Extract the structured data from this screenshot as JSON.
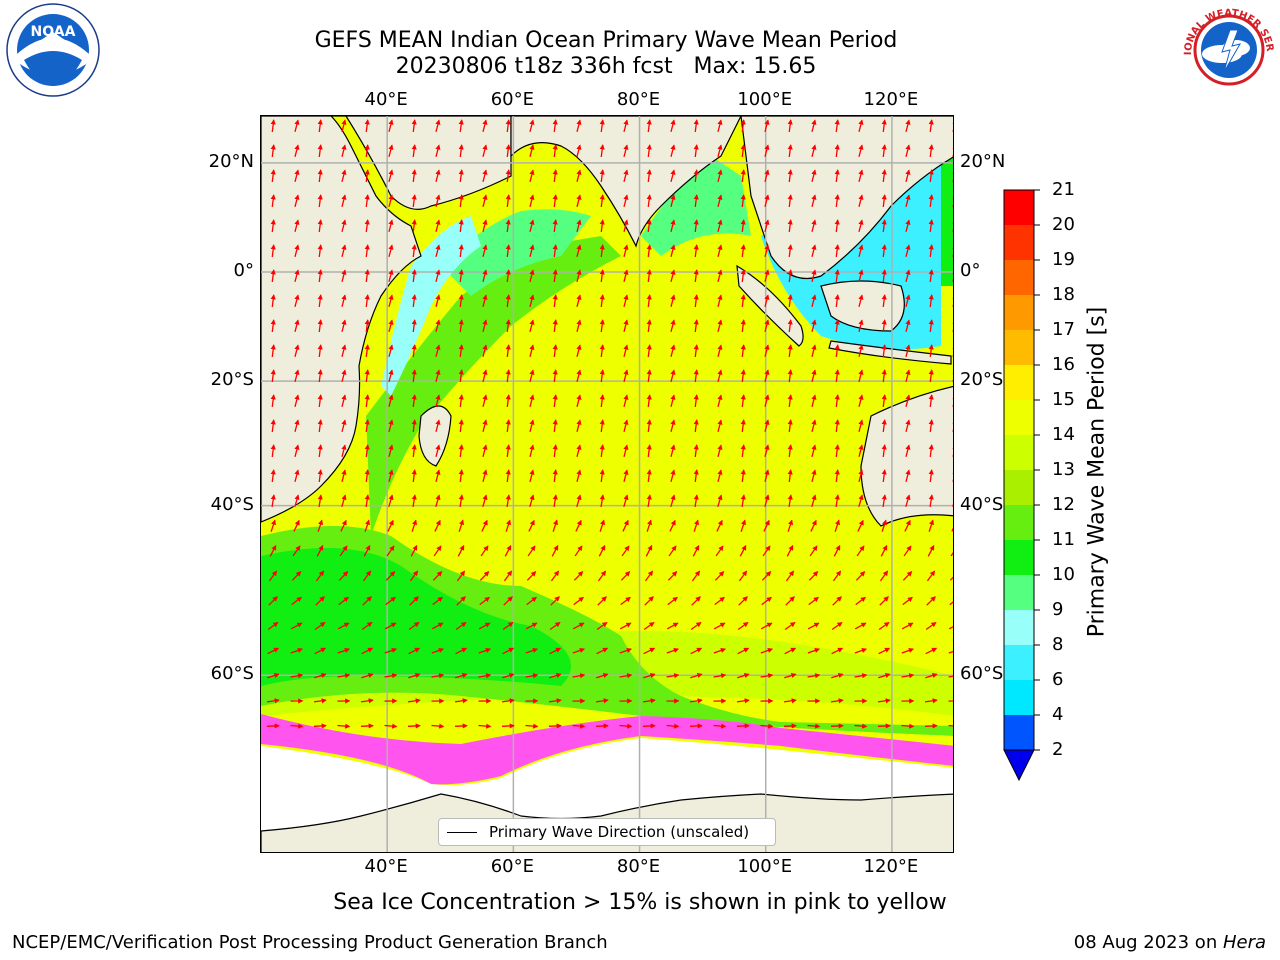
{
  "title": {
    "line1": "GEFS MEAN Indian Ocean Primary Wave Mean Period",
    "line2": "20230806 t18z 336h fcst   Max: 15.65"
  },
  "logos": {
    "left": {
      "icon": "noaa-logo",
      "text": "NOAA",
      "ring_text": "NATIONAL OCEANIC AND ATMOSPHERIC ADMINISTRATION · U.S. DEPARTMENT OF COMMERCE"
    },
    "right": {
      "icon": "national-weather-service-logo",
      "ring_text": "NATIONAL WEATHER SERVICE"
    }
  },
  "axes": {
    "lon_ticks_top": [
      "40°E",
      "60°E",
      "80°E",
      "100°E",
      "120°E"
    ],
    "lon_ticks_bottom": [
      "40°E",
      "60°E",
      "80°E",
      "100°E",
      "120°E"
    ],
    "lat_ticks_left": [
      "20°N",
      "0°",
      "20°S",
      "40°S",
      "60°S"
    ],
    "lat_ticks_right": [
      "20°N",
      "0°",
      "20°S",
      "40°S",
      "60°S"
    ],
    "lon_range": [
      20,
      130
    ],
    "lat_range": [
      -73,
      28
    ],
    "grid": true
  },
  "legend": {
    "label": "Primary Wave Direction (unscaled)"
  },
  "colorbar": {
    "label": "Primary Wave Mean Period [s]",
    "tick_labels": [
      "2",
      "4",
      "6",
      "8",
      "9",
      "10",
      "11",
      "12",
      "13",
      "14",
      "15",
      "16",
      "17",
      "18",
      "19",
      "20",
      "21"
    ],
    "colors": [
      "#0055ff",
      "#00e8ff",
      "#3cf0ff",
      "#99fff9",
      "#55ff80",
      "#11ee11",
      "#66ee11",
      "#aaee00",
      "#ccff00",
      "#eeff00",
      "#ffee00",
      "#ffbb00",
      "#ff9900",
      "#ff6600",
      "#ff3300",
      "#ff0000"
    ],
    "underflow_color": "#0000ee",
    "extend": "min"
  },
  "chart_data": {
    "type": "heatmap",
    "title": "GEFS MEAN Indian Ocean Primary Wave Mean Period",
    "subtitle": "20230806 t18z 336h fcst   Max: 15.65",
    "variable": "Primary Wave Mean Period [s]",
    "max": 15.65,
    "xlim": [
      20,
      130
    ],
    "ylim": [
      -73,
      28
    ],
    "vector_field": "Primary Wave Direction (unscaled)"
  },
  "colors": {
    "land": "#efeddb",
    "grid": "#b0b0b0",
    "arrow": "#ff0000",
    "sea_ice": "#ff55ee"
  },
  "notes": {
    "sea_ice": "Sea Ice Concentration > 15% is shown in pink to yellow"
  },
  "footer": {
    "left": "NCEP/EMC/Verification Post Processing Product Generation Branch",
    "right_date": "08 Aug 2023 on ",
    "right_host": "Hera"
  }
}
